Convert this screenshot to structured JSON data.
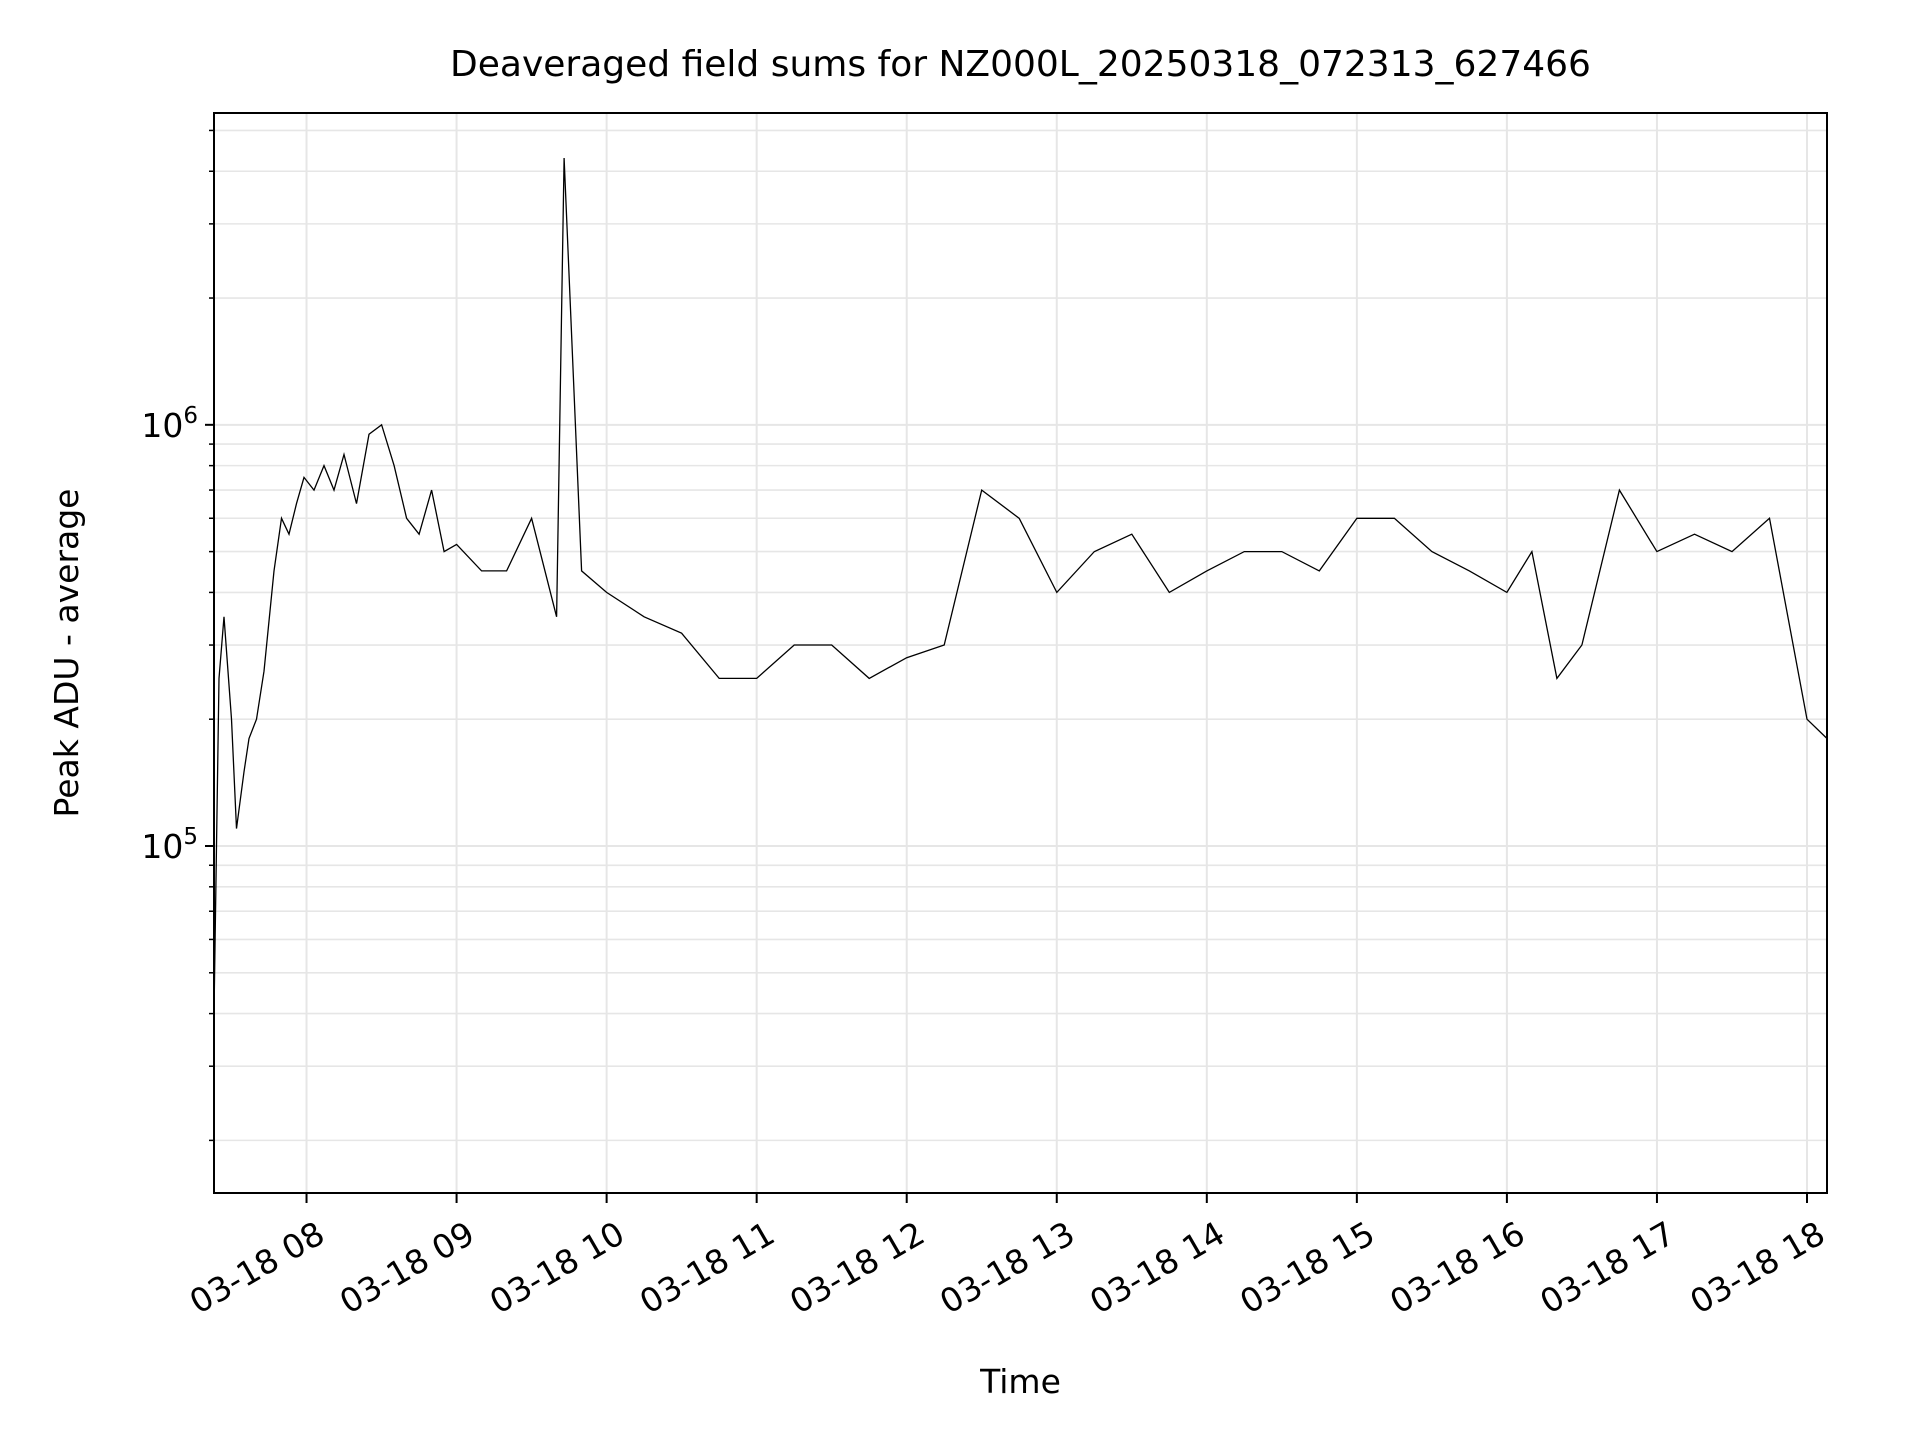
{
  "chart_data": {
    "type": "line",
    "title": "Deaveraged field sums for NZ000L_20250318_072313_627466",
    "xlabel": "Time",
    "ylabel": "Peak ADU - average",
    "xscale": "time",
    "yscale": "log",
    "xlim": [
      "2025-03-18 07:23",
      "2025-03-18 18:08"
    ],
    "ylim": [
      15000,
      5500000
    ],
    "grid": true,
    "line_color": "#000000",
    "grid_color": "#e6e6e6",
    "x_ticks": [
      {
        "value": "2025-03-18 08:00",
        "label": "03-18 08"
      },
      {
        "value": "2025-03-18 09:00",
        "label": "03-18 09"
      },
      {
        "value": "2025-03-18 10:00",
        "label": "03-18 10"
      },
      {
        "value": "2025-03-18 11:00",
        "label": "03-18 11"
      },
      {
        "value": "2025-03-18 12:00",
        "label": "03-18 12"
      },
      {
        "value": "2025-03-18 13:00",
        "label": "03-18 13"
      },
      {
        "value": "2025-03-18 14:00",
        "label": "03-18 14"
      },
      {
        "value": "2025-03-18 15:00",
        "label": "03-18 15"
      },
      {
        "value": "2025-03-18 16:00",
        "label": "03-18 16"
      },
      {
        "value": "2025-03-18 17:00",
        "label": "03-18 17"
      },
      {
        "value": "2025-03-18 18:00",
        "label": "03-18 18"
      }
    ],
    "y_ticks": [
      {
        "value": 100000,
        "base": "10",
        "exp": "5"
      },
      {
        "value": 1000000,
        "base": "10",
        "exp": "6"
      }
    ],
    "series": [
      {
        "x": [
          "2025-03-18 07:23",
          "2025-03-18 07:25",
          "2025-03-18 07:27",
          "2025-03-18 07:30",
          "2025-03-18 07:32",
          "2025-03-18 07:35",
          "2025-03-18 07:37",
          "2025-03-18 07:40",
          "2025-03-18 07:43",
          "2025-03-18 07:47",
          "2025-03-18 07:50",
          "2025-03-18 07:53",
          "2025-03-18 07:56",
          "2025-03-18 07:59",
          "2025-03-18 08:03",
          "2025-03-18 08:07",
          "2025-03-18 08:11",
          "2025-03-18 08:15",
          "2025-03-18 08:20",
          "2025-03-18 08:25",
          "2025-03-18 08:30",
          "2025-03-18 08:35",
          "2025-03-18 08:40",
          "2025-03-18 08:45",
          "2025-03-18 08:50",
          "2025-03-18 08:55",
          "2025-03-18 09:00",
          "2025-03-18 09:10",
          "2025-03-18 09:20",
          "2025-03-18 09:30",
          "2025-03-18 09:40",
          "2025-03-18 09:43",
          "2025-03-18 09:50",
          "2025-03-18 10:00",
          "2025-03-18 10:15",
          "2025-03-18 10:30",
          "2025-03-18 10:45",
          "2025-03-18 11:00",
          "2025-03-18 11:15",
          "2025-03-18 11:30",
          "2025-03-18 11:45",
          "2025-03-18 12:00",
          "2025-03-18 12:15",
          "2025-03-18 12:30",
          "2025-03-18 12:45",
          "2025-03-18 13:00",
          "2025-03-18 13:15",
          "2025-03-18 13:30",
          "2025-03-18 13:45",
          "2025-03-18 14:00",
          "2025-03-18 14:15",
          "2025-03-18 14:30",
          "2025-03-18 14:45",
          "2025-03-18 15:00",
          "2025-03-18 15:15",
          "2025-03-18 15:30",
          "2025-03-18 15:45",
          "2025-03-18 16:00",
          "2025-03-18 16:10",
          "2025-03-18 16:20",
          "2025-03-18 16:30",
          "2025-03-18 16:45",
          "2025-03-18 17:00",
          "2025-03-18 17:15",
          "2025-03-18 17:30",
          "2025-03-18 17:45",
          "2025-03-18 18:00",
          "2025-03-18 18:08"
        ],
        "y": [
          40000,
          250000,
          350000,
          200000,
          110000,
          150000,
          180000,
          200000,
          260000,
          450000,
          600000,
          550000,
          650000,
          750000,
          700000,
          800000,
          700000,
          850000,
          650000,
          950000,
          1000000,
          800000,
          600000,
          550000,
          700000,
          500000,
          520000,
          450000,
          450000,
          600000,
          350000,
          4300000,
          450000,
          400000,
          350000,
          320000,
          250000,
          250000,
          300000,
          300000,
          250000,
          280000,
          300000,
          700000,
          600000,
          400000,
          500000,
          550000,
          400000,
          450000,
          500000,
          500000,
          450000,
          600000,
          600000,
          500000,
          450000,
          400000,
          500000,
          250000,
          300000,
          700000,
          500000,
          550000,
          500000,
          600000,
          200000,
          180000
        ]
      }
    ]
  }
}
